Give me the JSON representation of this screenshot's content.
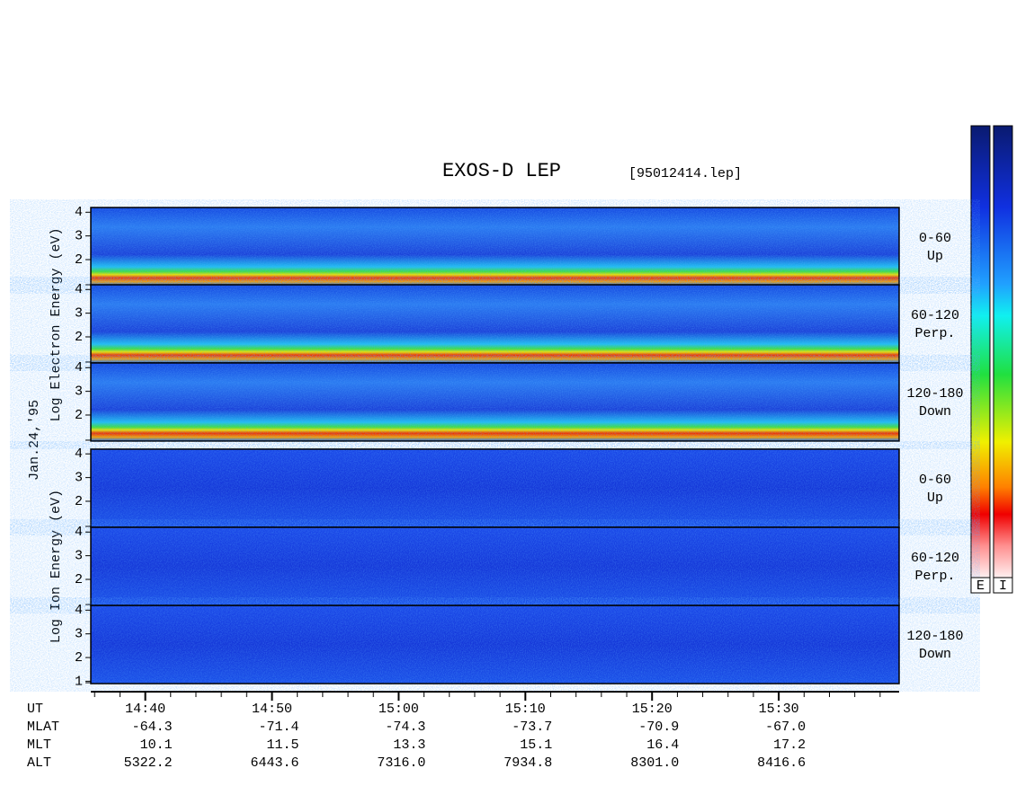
{
  "chart_data": {
    "type": "spectrogram",
    "title": "EXOS-D LEP",
    "file": "[95012414.lep]",
    "date": "Jan.24,'95",
    "ylim": [
      0.9,
      4.2
    ],
    "xlim": [
      875.7,
      939.5
    ],
    "xticks": [
      {
        "value": 880,
        "label": "14:40"
      },
      {
        "value": 890,
        "label": "14:50"
      },
      {
        "value": 900,
        "label": "15:00"
      },
      {
        "value": 910,
        "label": "15:10"
      },
      {
        "value": 920,
        "label": "15:20"
      },
      {
        "value": 930,
        "label": "15:30"
      }
    ],
    "x_label": "UT",
    "species": [
      {
        "label": "Log  Electron  Energy (eV)",
        "panels": [
          {
            "pitch": [
              "0-60",
              "Up"
            ],
            "yticks": [
              2,
              3,
              4
            ]
          },
          {
            "pitch": [
              "60-120",
              "Perp."
            ],
            "yticks": [
              2,
              3,
              4
            ]
          },
          {
            "pitch": [
              "120-180",
              "Down"
            ],
            "yticks": [
              2,
              3,
              4
            ]
          }
        ]
      },
      {
        "label": "Log  Ion  Energy (eV)",
        "panels": [
          {
            "pitch": [
              "0-60",
              "Up"
            ],
            "yticks": [
              2,
              3,
              4
            ]
          },
          {
            "pitch": [
              "60-120",
              "Perp."
            ],
            "yticks": [
              2,
              3,
              4
            ]
          },
          {
            "pitch": [
              "120-180",
              "Down"
            ],
            "yticks": [
              1,
              2,
              3,
              4
            ]
          }
        ]
      }
    ],
    "orbit": [
      {
        "name": "MLAT",
        "values": [
          "-64.3",
          "-71.4",
          "-74.3",
          "-73.7",
          "-70.9",
          "-67.0"
        ]
      },
      {
        "name": "MLT",
        "values": [
          "10.1",
          "11.5",
          "13.3",
          "15.1",
          "16.4",
          "17.2"
        ]
      },
      {
        "name": "ALT",
        "values": [
          "5322.2",
          "6443.6",
          "7316.0",
          "7934.8",
          "8301.0",
          "8416.6"
        ]
      }
    ],
    "colorbars": [
      "E",
      "I"
    ]
  }
}
